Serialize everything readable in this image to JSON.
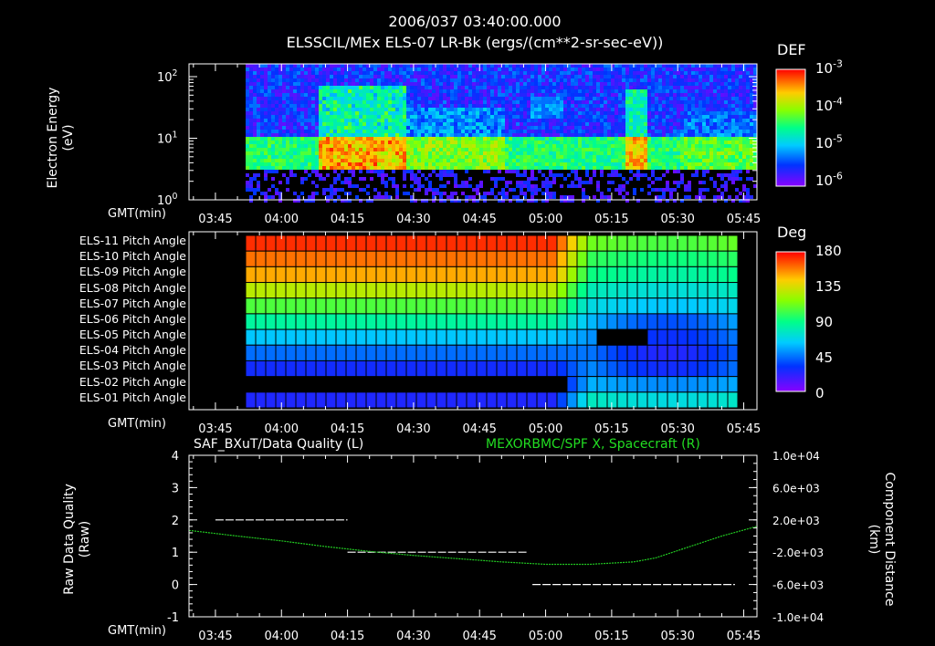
{
  "header": {
    "timestamp": "2006/037 03:40:00.000",
    "instrument": "ELSSCIL/MEx ELS-07 LR-Bk  (ergs/(cm**2-sr-sec-eV))"
  },
  "time_axis": {
    "label": "GMT(min)",
    "ticks": [
      "03:45",
      "04:00",
      "04:15",
      "04:30",
      "04:45",
      "05:00",
      "05:15",
      "05:30",
      "05:45"
    ],
    "tick_minutes": [
      225,
      240,
      255,
      270,
      285,
      300,
      315,
      330,
      345
    ],
    "range_minutes": [
      219,
      348
    ]
  },
  "panel1": {
    "ylabel_line1": "Electron Energy",
    "ylabel_line2": "(eV)",
    "y_ticks": [
      {
        "base": "10",
        "exp": "0"
      },
      {
        "base": "10",
        "exp": "1"
      },
      {
        "base": "10",
        "exp": "2"
      }
    ],
    "colorbar_title": "DEF",
    "colorbar_ticks": [
      {
        "base": "10",
        "exp": "-3"
      },
      {
        "base": "10",
        "exp": "-4"
      },
      {
        "base": "10",
        "exp": "-5"
      },
      {
        "base": "10",
        "exp": "-6"
      }
    ]
  },
  "panel2": {
    "rows": [
      "ELS-11 Pitch Angle",
      "ELS-10 Pitch Angle",
      "ELS-09 Pitch Angle",
      "ELS-08 Pitch Angle",
      "ELS-07 Pitch Angle",
      "ELS-06 Pitch Angle",
      "ELS-05 Pitch Angle",
      "ELS-04 Pitch Angle",
      "ELS-03 Pitch Angle",
      "ELS-02 Pitch Angle",
      "ELS-01 Pitch Angle"
    ],
    "colorbar_title": "Deg",
    "colorbar_ticks": [
      "180",
      "135",
      "90",
      "45",
      "0"
    ]
  },
  "panel3": {
    "left_title": "SAF_BXuT/Data Quality (L)",
    "right_title": "MEXORBMC/SPF X, Spacecraft (R)",
    "right_title_color": "#22dd22",
    "ylabel_left_line1": "Raw Data Quality",
    "ylabel_left_line2": "(Raw)",
    "ylabel_right_line1": "Component Distance",
    "ylabel_right_line2": "(km)",
    "left_ticks": [
      "4",
      "3",
      "2",
      "1",
      "0",
      "-1"
    ],
    "right_ticks": [
      "1.0e+04",
      "6.0e+03",
      "2.0e+03",
      "-2.0e+03",
      "-6.0e+03",
      "-1.0e+04"
    ]
  },
  "chart_data": {
    "type": "line",
    "title": "SAF_BXuT/Data Quality (L) / MEXORBMC/SPF X, Spacecraft (R)",
    "xlabel": "GMT(min)",
    "x_units": "minutes since 00:00",
    "xlim": [
      219,
      348
    ],
    "ylim_left": [
      -1,
      4
    ],
    "ylim_right": [
      -10000,
      10000
    ],
    "series": [
      {
        "name": "Data Quality (L)",
        "color": "#ffffff",
        "style": "dashed",
        "axis": "left",
        "segments": [
          {
            "x": [
              225,
              255
            ],
            "y": [
              2,
              2
            ]
          },
          {
            "x": [
              255,
              296
            ],
            "y": [
              1,
              1
            ]
          },
          {
            "x": [
              297,
              343
            ],
            "y": [
              0,
              0
            ]
          }
        ]
      },
      {
        "name": "SPF X, Spacecraft (R)",
        "color": "#22cc22",
        "style": "dotted",
        "axis": "right",
        "x": [
          219,
          230,
          240,
          250,
          260,
          270,
          280,
          290,
          300,
          310,
          320,
          325,
          330,
          340,
          348
        ],
        "y": [
          700,
          0,
          -600,
          -1300,
          -1900,
          -2400,
          -2800,
          -3200,
          -3500,
          -3500,
          -3200,
          -2700,
          -1800,
          0,
          1200
        ]
      }
    ]
  }
}
